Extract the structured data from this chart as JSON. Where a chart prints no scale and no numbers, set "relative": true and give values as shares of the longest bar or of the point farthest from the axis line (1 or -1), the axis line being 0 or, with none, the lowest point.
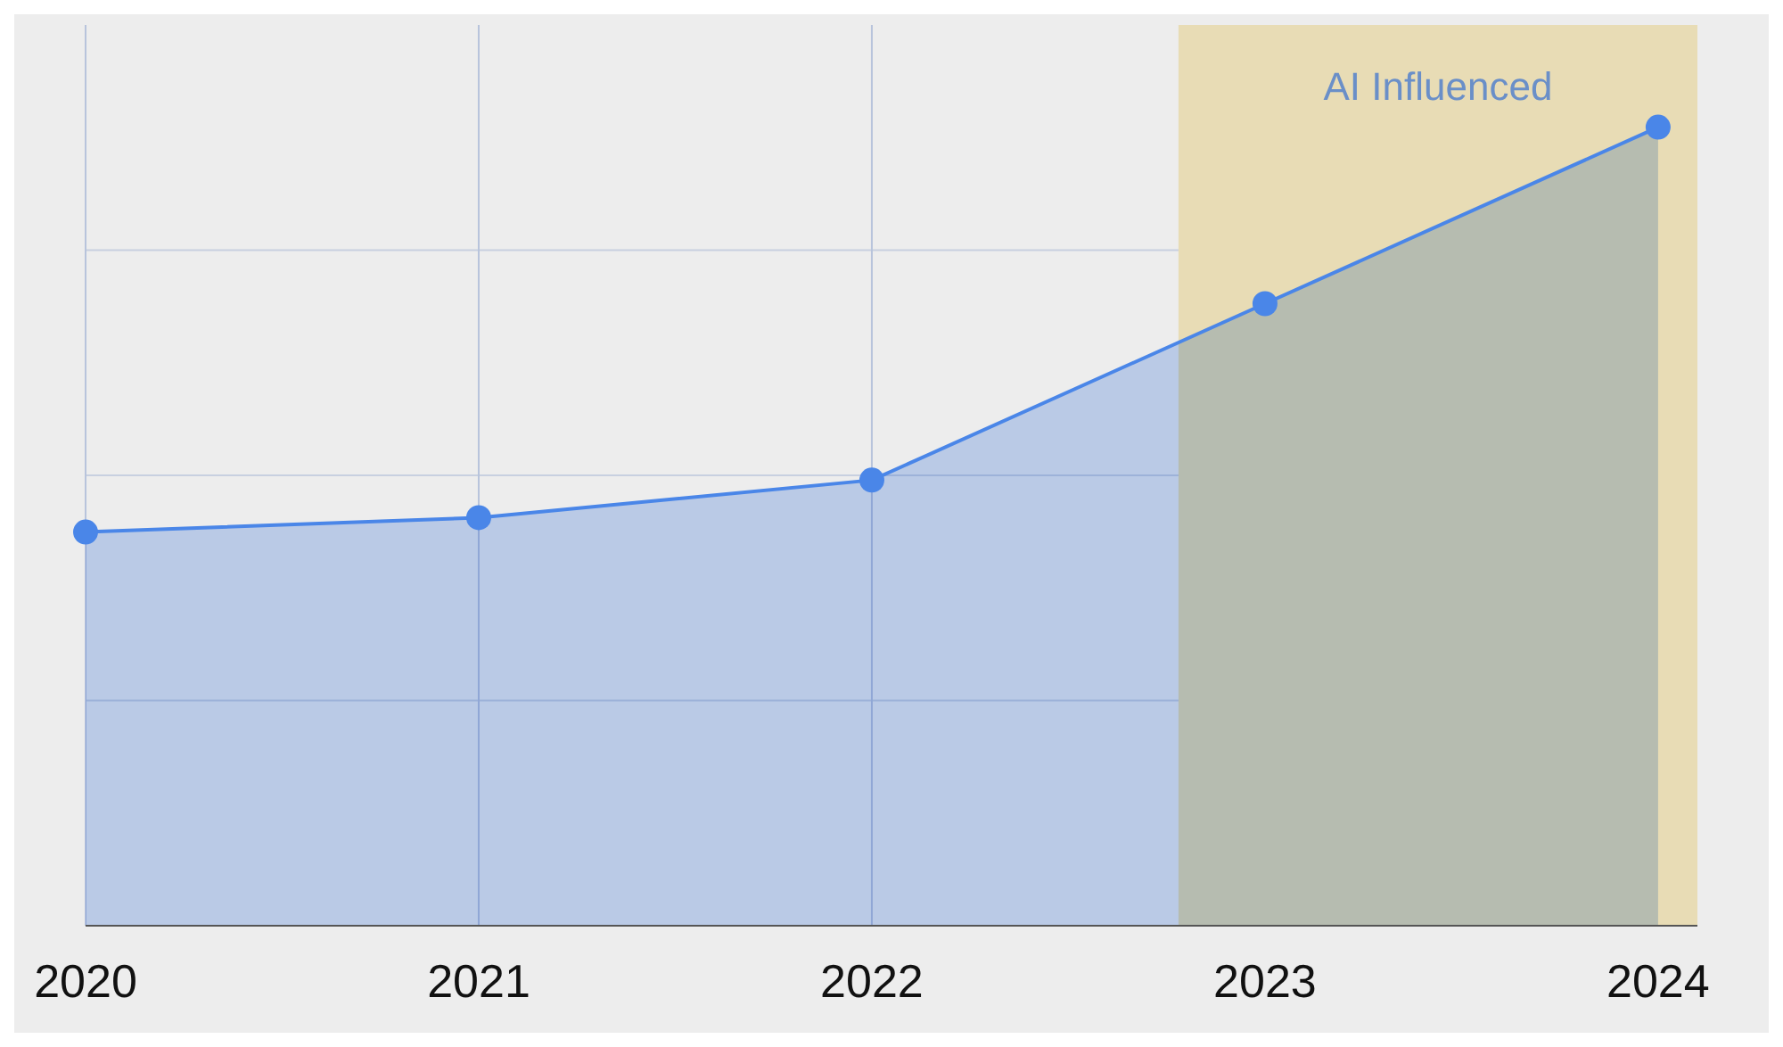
{
  "chart_data": {
    "type": "area",
    "relative": true,
    "x": [
      2020,
      2021,
      2022,
      2023,
      2024
    ],
    "xlim": [
      2020,
      2024.1
    ],
    "xticks": [
      2020,
      2021,
      2022,
      2023,
      2024
    ],
    "series": [
      {
        "color": "#4a86e8",
        "values": [
          0.493,
          0.511,
          0.558,
          0.779,
          1
        ]
      }
    ],
    "bands": [
      {
        "axis": "x",
        "from": 2022.78,
        "to": 2024.1,
        "label": "AI Influenced",
        "color": "#e8dcb5"
      }
    ],
    "grid": true,
    "marker": "circle"
  }
}
